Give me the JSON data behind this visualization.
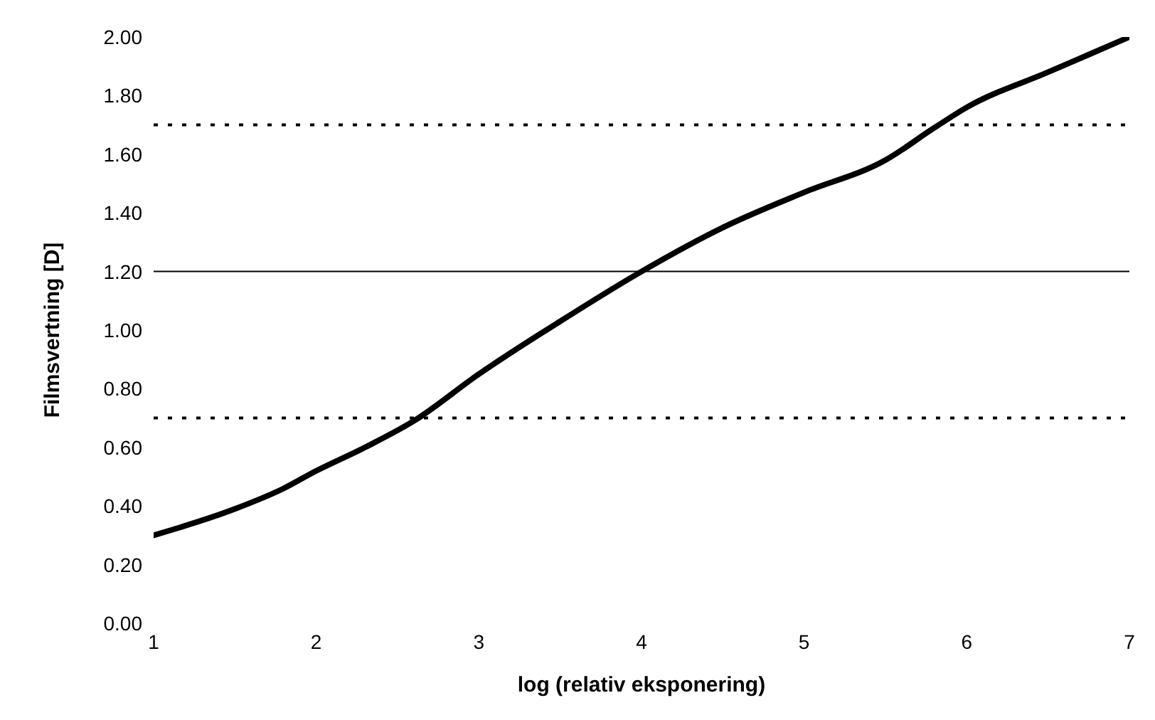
{
  "chart_data": {
    "type": "line",
    "xlabel": "log (relativ eksponering)",
    "ylabel": "Filmsvertning [D]",
    "x": [
      1,
      1.5,
      1.8,
      2,
      2.3,
      2.6,
      3,
      3.5,
      4,
      4.5,
      5,
      5.5,
      5.8,
      6,
      6.5,
      7
    ],
    "series": [
      {
        "color": "#000000",
        "values": [
          0.3,
          0.39,
          0.46,
          0.52,
          0.6,
          0.69,
          0.85,
          1.03,
          1.2,
          1.35,
          1.47,
          1.58,
          1.69,
          1.76,
          1.88,
          2.0
        ]
      }
    ],
    "xlim": [
      1,
      7
    ],
    "xticks": [
      1,
      2,
      3,
      4,
      5,
      6,
      7
    ],
    "ylim": [
      0,
      2
    ],
    "yticks": [
      {
        "value": 0,
        "label": "0.00"
      },
      {
        "value": 0.2,
        "label": "0.20"
      },
      {
        "value": 0.4,
        "label": "0.40"
      },
      {
        "value": 0.6,
        "label": "0.60"
      },
      {
        "value": 0.8,
        "label": "0.80"
      },
      {
        "value": 1,
        "label": "1.00"
      },
      {
        "value": 1.2,
        "label": "1.20"
      },
      {
        "value": 1.4,
        "label": "1.40"
      },
      {
        "value": 1.6,
        "label": "1.60"
      },
      {
        "value": 1.8,
        "label": "1.80"
      },
      {
        "value": 2,
        "label": "2.00"
      }
    ],
    "ref_lines": [
      {
        "axis": "y",
        "value": 1.7,
        "color": "#000000",
        "line_style": "dotted"
      },
      {
        "axis": "y",
        "value": 1.2,
        "color": "#000000",
        "line_style": "solid"
      },
      {
        "axis": "y",
        "value": 0.7,
        "color": "#000000",
        "line_style": "dotted"
      }
    ],
    "grid": false,
    "legend": false,
    "marker": "none",
    "line_style": "solid"
  }
}
